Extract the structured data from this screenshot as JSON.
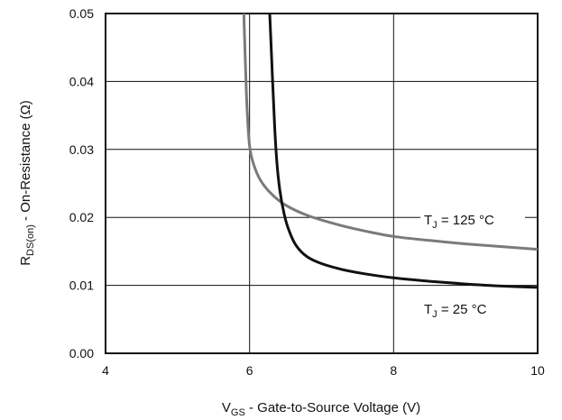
{
  "chart_data": {
    "type": "line",
    "xlabel": {
      "main": "V",
      "sub": "GS",
      "rest": " - Gate-to-Source Voltage (V)"
    },
    "ylabel": {
      "main": "R",
      "sub": "DS(on)",
      "rest": " - On-Resistance (Ω)"
    },
    "xlim": [
      4,
      10
    ],
    "ylim": [
      0,
      0.05
    ],
    "x_ticks": [
      "4",
      "6",
      "8",
      "10"
    ],
    "y_ticks": [
      "0.00",
      "0.01",
      "0.02",
      "0.03",
      "0.04",
      "0.05"
    ],
    "grid": true,
    "series": [
      {
        "name": "T_J = 125 °C",
        "label_main": "T",
        "label_sub": "J",
        "label_rest": " = 125 °C",
        "color": "#7a7a7a",
        "x": [
          5.92,
          5.95,
          5.97,
          6.0,
          6.05,
          6.15,
          6.3,
          6.5,
          6.8,
          7.2,
          7.6,
          8.0,
          8.5,
          9.0,
          9.5,
          10.0
        ],
        "y": [
          0.05,
          0.04,
          0.035,
          0.0305,
          0.028,
          0.0255,
          0.0235,
          0.0218,
          0.0203,
          0.019,
          0.018,
          0.0172,
          0.0166,
          0.0161,
          0.0157,
          0.0153
        ]
      },
      {
        "name": "T_J = 25 °C",
        "label_main": "T",
        "label_sub": "J",
        "label_rest": " = 25 °C",
        "color": "#111111",
        "x": [
          6.28,
          6.32,
          6.35,
          6.38,
          6.42,
          6.48,
          6.55,
          6.65,
          6.8,
          7.0,
          7.3,
          7.6,
          8.0,
          8.5,
          9.0,
          9.5,
          10.0
        ],
        "y": [
          0.05,
          0.04,
          0.033,
          0.028,
          0.024,
          0.0205,
          0.018,
          0.0158,
          0.0142,
          0.0132,
          0.0123,
          0.0117,
          0.0111,
          0.0106,
          0.0102,
          0.0099,
          0.0097
        ]
      }
    ]
  }
}
